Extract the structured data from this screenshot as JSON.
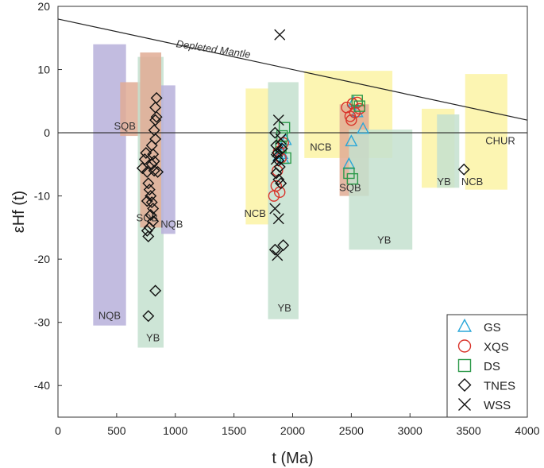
{
  "chart_data": {
    "type": "scatter",
    "title": "",
    "xlabel": "t (Ma)",
    "ylabel": "εHf (t)",
    "xlim": [
      0,
      4000
    ],
    "ylim": [
      -45,
      20
    ],
    "xticks": [
      0,
      500,
      1000,
      1500,
      2000,
      2500,
      3000,
      3500,
      4000
    ],
    "yticks": [
      20,
      10,
      0,
      -10,
      -20,
      -30,
      -40
    ],
    "reference_lines": [
      {
        "name": "Depleted Mantle",
        "x": [
          0,
          4000
        ],
        "y": [
          18,
          2
        ]
      },
      {
        "name": "CHUR",
        "x": [
          0,
          4000
        ],
        "y": [
          0,
          0
        ]
      }
    ],
    "regions": [
      {
        "label": "NQB",
        "x": [
          300,
          580
        ],
        "y": [
          -30.5,
          14
        ],
        "color": "#b7b0da"
      },
      {
        "label": "SQB",
        "x": [
          530,
          700
        ],
        "y": [
          -0.5,
          8
        ],
        "color": "#e0ab94"
      },
      {
        "label": "YB",
        "x": [
          680,
          900
        ],
        "y": [
          -34,
          12
        ],
        "color": "#c4e0cf"
      },
      {
        "label": "SQB",
        "x": [
          700,
          880
        ],
        "y": [
          -15,
          12.7
        ],
        "color": "#e0ab94"
      },
      {
        "label": "NQB",
        "x": [
          880,
          1000
        ],
        "y": [
          -16,
          7.5
        ],
        "color": "#b7b0da"
      },
      {
        "label": "NCB",
        "x": [
          1600,
          1800
        ],
        "y": [
          -14.5,
          7
        ],
        "color": "#fbf3a4"
      },
      {
        "label": "YB",
        "x": [
          1790,
          2050
        ],
        "y": [
          -29.5,
          8
        ],
        "color": "#c4e0cf"
      },
      {
        "label": "NCB",
        "x": [
          2100,
          2850
        ],
        "y": [
          -4,
          9.8
        ],
        "color": "#fbf3a4"
      },
      {
        "label": "SQB",
        "x": [
          2400,
          2650
        ],
        "y": [
          -10,
          4.5
        ],
        "color": "#e0ab94"
      },
      {
        "label": "YB",
        "x": [
          2480,
          3020
        ],
        "y": [
          -18.5,
          0.5
        ],
        "color": "#c4e0cf"
      },
      {
        "label": "NCB",
        "x": [
          3100,
          3380
        ],
        "y": [
          -8.7,
          3.8
        ],
        "color": "#fbf3a4"
      },
      {
        "label": "YB",
        "x": [
          3230,
          3420
        ],
        "y": [
          -8.7,
          2.9
        ],
        "color": "#c4e0cf"
      },
      {
        "label": "NCB",
        "x": [
          3470,
          3830
        ],
        "y": [
          -9,
          9.3
        ],
        "color": "#fbf3a4"
      }
    ],
    "region_labels": [
      {
        "text": "SQB",
        "x": 570,
        "y": 0.5
      },
      {
        "text": "SQB",
        "x": 760,
        "y": -14
      },
      {
        "text": "NQB",
        "x": 970,
        "y": -15
      },
      {
        "text": "NQB",
        "x": 440,
        "y": -29.5
      },
      {
        "text": "YB",
        "x": 810,
        "y": -33
      },
      {
        "text": "NCB",
        "x": 1680,
        "y": -13.3
      },
      {
        "text": "YB",
        "x": 1930,
        "y": -28.3
      },
      {
        "text": "NCB",
        "x": 2240,
        "y": -2.8
      },
      {
        "text": "SQB",
        "x": 2490,
        "y": -9.2
      },
      {
        "text": "YB",
        "x": 2780,
        "y": -17.5
      },
      {
        "text": "YB",
        "x": 3290,
        "y": -8.3
      },
      {
        "text": "NCB",
        "x": 3530,
        "y": -8.3
      },
      {
        "text": "CHUR",
        "x": 3770,
        "y": -1.8
      },
      {
        "text": "Depleted Mantle",
        "x": 1320,
        "y": 12.7
      }
    ],
    "series": [
      {
        "name": "GS",
        "marker": "triangle",
        "color": "#2aa7d9",
        "points": [
          [
            1880,
            -3.8
          ],
          [
            1900,
            -2.6
          ],
          [
            1920,
            -4.2
          ],
          [
            1940,
            -1.2
          ],
          [
            1910,
            -3.4
          ],
          [
            2480,
            -5
          ],
          [
            2500,
            -1.4
          ],
          [
            2550,
            3.2
          ],
          [
            2600,
            0.6
          ],
          [
            2520,
            4.8
          ]
        ]
      },
      {
        "name": "XQS",
        "marker": "circle",
        "color": "#d9342b",
        "points": [
          [
            1840,
            -10
          ],
          [
            1860,
            -8.4
          ],
          [
            1890,
            -9.4
          ],
          [
            1870,
            -6
          ],
          [
            1900,
            -4
          ],
          [
            1920,
            -1.6
          ],
          [
            1880,
            -3
          ],
          [
            2460,
            4
          ],
          [
            2500,
            2
          ],
          [
            2510,
            4.6
          ],
          [
            2530,
            3.2
          ],
          [
            2550,
            4.8
          ],
          [
            2570,
            3.8
          ],
          [
            2490,
            2.6
          ]
        ]
      },
      {
        "name": "DS",
        "marker": "square",
        "color": "#2d9a4a",
        "points": [
          [
            1910,
            -0.5
          ],
          [
            1930,
            0.8
          ],
          [
            1900,
            -2.2
          ],
          [
            1940,
            -4
          ],
          [
            2480,
            -6.4
          ],
          [
            2510,
            -7.3
          ],
          [
            2550,
            5.1
          ],
          [
            2570,
            4.2
          ]
        ]
      },
      {
        "name": "TNES",
        "marker": "diamond",
        "color": "#111111",
        "points": [
          [
            720,
            -5.6
          ],
          [
            740,
            -4.2
          ],
          [
            750,
            -3.2
          ],
          [
            760,
            -6.2
          ],
          [
            770,
            -8
          ],
          [
            780,
            -9
          ],
          [
            790,
            -10
          ],
          [
            800,
            -11
          ],
          [
            810,
            -12
          ],
          [
            790,
            -13
          ],
          [
            810,
            -14
          ],
          [
            780,
            -15
          ],
          [
            760,
            -15.5
          ],
          [
            770,
            -16.4
          ],
          [
            800,
            -5
          ],
          [
            820,
            -6
          ],
          [
            830,
            2
          ],
          [
            840,
            2.5
          ],
          [
            820,
            0.4
          ],
          [
            830,
            -1
          ],
          [
            800,
            -2
          ],
          [
            810,
            -3.4
          ],
          [
            830,
            4
          ],
          [
            840,
            5.5
          ],
          [
            830,
            -25
          ],
          [
            770,
            -29
          ],
          [
            760,
            -10.8
          ],
          [
            820,
            -4.5
          ],
          [
            850,
            -6.2
          ],
          [
            1850,
            0
          ],
          [
            1860,
            -2
          ],
          [
            1870,
            -3.2
          ],
          [
            1880,
            -4.4
          ],
          [
            1890,
            -5.4
          ],
          [
            1860,
            -6.4
          ],
          [
            1880,
            -7.4
          ],
          [
            1900,
            -8
          ],
          [
            1910,
            -2.5
          ],
          [
            1920,
            -17.8
          ],
          [
            1850,
            -18.5
          ],
          [
            3460,
            -5.8
          ]
        ]
      },
      {
        "name": "WSS",
        "marker": "x",
        "color": "#111111",
        "points": [
          [
            1890,
            15.5
          ],
          [
            1880,
            2
          ],
          [
            1900,
            -1
          ],
          [
            1870,
            -3
          ],
          [
            1860,
            -4.2
          ],
          [
            1850,
            -12
          ],
          [
            1880,
            -13.6
          ],
          [
            1870,
            -19.4
          ]
        ]
      }
    ],
    "legend": {
      "position": "bottom-right",
      "entries": [
        "GS",
        "XQS",
        "DS",
        "TNES",
        "WSS"
      ]
    }
  }
}
